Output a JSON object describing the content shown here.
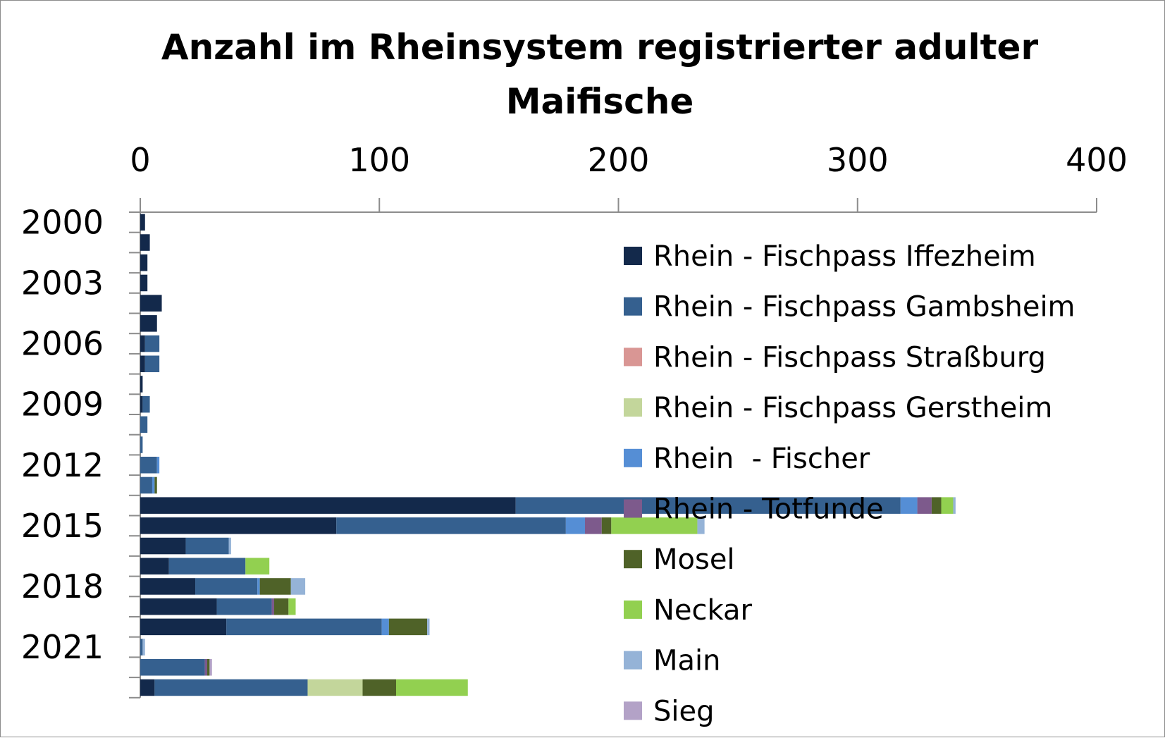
{
  "chart_data": {
    "type": "bar",
    "orientation": "horizontal",
    "stacked": true,
    "title": "Anzahl im Rheinsystem registrierter adulter Maifische",
    "xlabel": "",
    "ylabel": "",
    "xlim": [
      0,
      400
    ],
    "x_ticks": [
      "0",
      "100",
      "200",
      "300",
      "400"
    ],
    "x_axis_position": "top",
    "categories": [
      "2000",
      "2001",
      "2002",
      "2003",
      "2004",
      "2005",
      "2006",
      "2007",
      "2008",
      "2009",
      "2010",
      "2011",
      "2012",
      "2013",
      "2014",
      "2015",
      "2016",
      "2017",
      "2018",
      "2019",
      "2020",
      "2021",
      "2022",
      "2023"
    ],
    "y_tick_labels": [
      "2000",
      "",
      "",
      "2003",
      "",
      "",
      "2006",
      "",
      "",
      "2009",
      "",
      "",
      "2012",
      "",
      "",
      "2015",
      "",
      "",
      "2018",
      "",
      "",
      "2021",
      "",
      ""
    ],
    "grid": false,
    "legend_position": "right",
    "series": [
      {
        "name": "Rhein - Fischpass Iffezheim",
        "color": "#13294b",
        "values": [
          2,
          4,
          3,
          3,
          9,
          7,
          2,
          2,
          1,
          1,
          0,
          0,
          0,
          0,
          157,
          82,
          19,
          12,
          23,
          32,
          36,
          0,
          0,
          6
        ]
      },
      {
        "name": "Rhein - Fischpass Gambsheim",
        "color": "#35608f",
        "values": [
          0,
          0,
          0,
          0,
          0,
          0,
          6,
          6,
          0,
          3,
          3,
          1,
          7,
          5,
          161,
          96,
          18,
          32,
          26,
          23,
          65,
          1,
          27,
          64
        ]
      },
      {
        "name": "Rhein - Fischpass Straßburg",
        "color": "#d99694",
        "values": [
          0,
          0,
          0,
          0,
          0,
          0,
          0,
          0,
          0,
          0,
          0,
          0,
          0,
          0,
          0,
          0,
          0,
          0,
          0,
          0,
          0,
          0,
          0,
          0
        ]
      },
      {
        "name": "Rhein - Fischpass Gerstheim",
        "color": "#c3d69b",
        "values": [
          0,
          0,
          0,
          0,
          0,
          0,
          0,
          0,
          0,
          0,
          0,
          0,
          0,
          0,
          0,
          0,
          0,
          0,
          0,
          0,
          0,
          0,
          0,
          23
        ]
      },
      {
        "name": "Rhein  - Fischer",
        "color": "#558ed5",
        "values": [
          0,
          0,
          0,
          0,
          0,
          0,
          0,
          0,
          0,
          0,
          0,
          0,
          1,
          1,
          7,
          8,
          0,
          0,
          1,
          0,
          3,
          0,
          0,
          0
        ]
      },
      {
        "name": "Rhein - Totfunde",
        "color": "#7d5a8c",
        "values": [
          0,
          0,
          0,
          0,
          0,
          0,
          0,
          0,
          0,
          0,
          0,
          0,
          0,
          0,
          6,
          7,
          0,
          0,
          0,
          1,
          0,
          0,
          1,
          0
        ]
      },
      {
        "name": "Mosel",
        "color": "#4f6228",
        "values": [
          0,
          0,
          0,
          0,
          0,
          0,
          0,
          0,
          0,
          0,
          0,
          0,
          0,
          1,
          4,
          4,
          0,
          0,
          13,
          6,
          16,
          0,
          1,
          14
        ]
      },
      {
        "name": "Neckar",
        "color": "#92d050",
        "values": [
          0,
          0,
          0,
          0,
          0,
          0,
          0,
          0,
          0,
          0,
          0,
          0,
          0,
          0,
          5,
          36,
          0,
          10,
          0,
          3,
          0,
          0,
          0,
          30
        ]
      },
      {
        "name": "Main",
        "color": "#95b3d7",
        "values": [
          0,
          0,
          0,
          0,
          0,
          0,
          0,
          0,
          0,
          0,
          0,
          0,
          0,
          0,
          1,
          3,
          1,
          0,
          6,
          0,
          1,
          1,
          0,
          0
        ]
      },
      {
        "name": "Sieg",
        "color": "#b3a2c7",
        "values": [
          0,
          0,
          0,
          0,
          0,
          0,
          0,
          0,
          0,
          0,
          0,
          0,
          0,
          0,
          0,
          0,
          0,
          0,
          0,
          0,
          0,
          0,
          1,
          0
        ]
      }
    ]
  }
}
